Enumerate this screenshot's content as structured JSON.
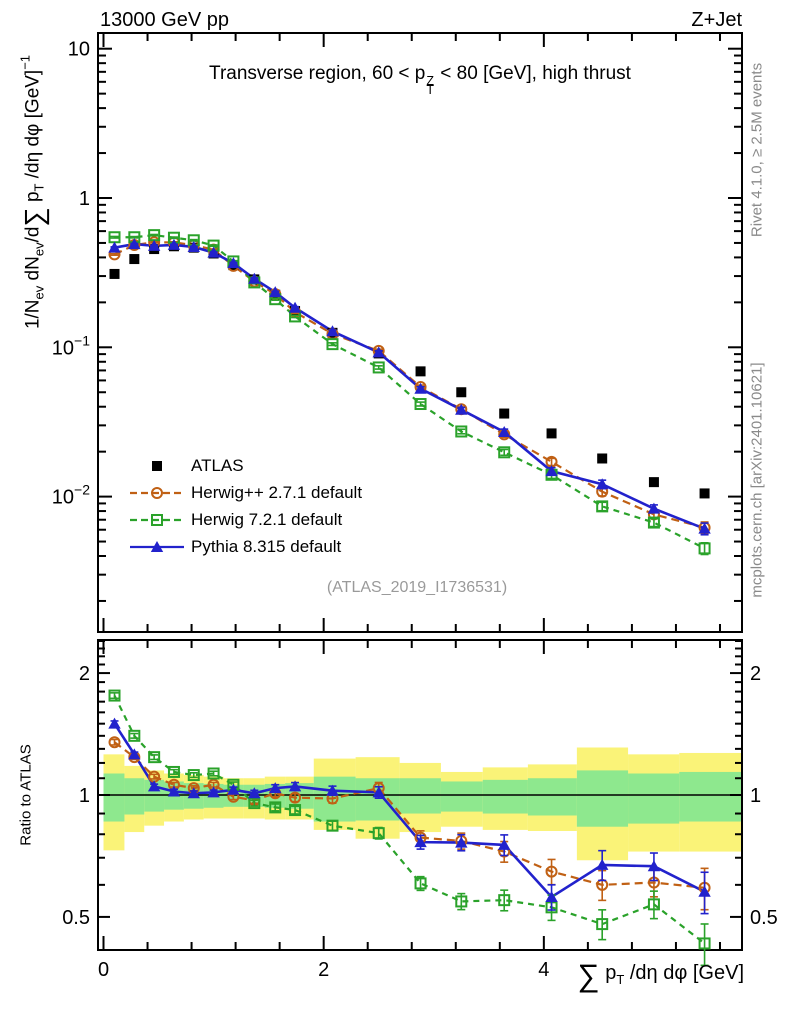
{
  "header": {
    "left": "13000 GeV pp",
    "right": "Z+Jet"
  },
  "panel_title": {
    "prefix": "Transverse region, 60 < p",
    "sup": "Z",
    "sub": "T",
    "suffix": " < 80 [GeV], high thrust"
  },
  "side_notes": {
    "top_right": "Rivet 4.1.0, ≥ 2.5M events",
    "bottom_right": "mcplots.cern.ch [arXiv:2401.10621]"
  },
  "watermark": "(ATLAS_2019_I1736531)",
  "axis_labels": {
    "y_main": {
      "p1": "1/N",
      "s1": "ev",
      "p2": " dN",
      "s2": "ev",
      "p3": "/d",
      "sum": "∑",
      "p4": " p",
      "s3": "T",
      "p5": " /dη dφ  [GeV]",
      "sup": "−1"
    },
    "x": {
      "sum": "∑",
      "p1": " p",
      "s1": "T",
      "p2": " /dη dφ [GeV]"
    },
    "y_ratio": "Ratio to ATLAS"
  },
  "legend": {
    "items": [
      {
        "label": "ATLAS",
        "marker": "filled-square",
        "color": "#000000",
        "line": "none"
      },
      {
        "label": "Herwig++ 2.7.1 default",
        "marker": "open-circle",
        "color": "#c06014",
        "line": "dashed"
      },
      {
        "label": "Herwig 7.2.1 default",
        "marker": "open-square",
        "color": "#2aa22a",
        "line": "dashed"
      },
      {
        "label": "Pythia 8.315 default",
        "marker": "filled-triangle",
        "color": "#2222cc",
        "line": "solid"
      }
    ]
  },
  "chart_data": {
    "type": "line",
    "title": "Transverse region, 60 < pT(Z) < 80 [GeV], high thrust",
    "xlabel": "∑ pT /dη dφ [GeV]",
    "ylabel": "1/Nev dNev/d∑ pT /dη dφ [GeV]^-1",
    "ylabel_ratio": "Ratio to ATLAS",
    "legend_position": "inside-left",
    "xlim": [
      -0.05,
      5.8
    ],
    "ylog": true,
    "ylim_main": [
      0.00124,
      12.7
    ],
    "ylim_ratio": [
      0.414,
      2.41
    ],
    "x": [
      0.1,
      0.28,
      0.46,
      0.64,
      0.82,
      1.0,
      1.18,
      1.37,
      1.56,
      1.74,
      2.08,
      2.5,
      2.88,
      3.25,
      3.64,
      4.07,
      4.53,
      5.0,
      5.46
    ],
    "bin_edges": [
      0.0,
      0.19,
      0.37,
      0.55,
      0.73,
      0.91,
      1.09,
      1.275,
      1.465,
      1.65,
      1.91,
      2.29,
      2.69,
      3.065,
      3.445,
      3.855,
      4.3,
      4.765,
      5.23,
      5.8
    ],
    "series": [
      {
        "name": "ATLAS",
        "role": "data",
        "values": [
          0.31,
          0.39,
          0.455,
          0.475,
          0.465,
          0.425,
          0.355,
          0.285,
          0.225,
          0.175,
          0.125,
          0.091,
          0.069,
          0.05,
          0.036,
          0.0265,
          0.018,
          0.0125,
          0.0105
        ]
      },
      {
        "name": "Herwig++ 2.7.1 default",
        "role": "mc",
        "values": [
          0.419,
          0.484,
          0.505,
          0.504,
          0.484,
          0.451,
          0.351,
          0.276,
          0.227,
          0.172,
          0.123,
          0.0946,
          0.0542,
          0.0385,
          0.0261,
          0.0171,
          0.0108,
          0.0076,
          0.0062
        ],
        "ratio": [
          1.35,
          1.24,
          1.11,
          1.06,
          1.04,
          1.06,
          0.99,
          0.97,
          1.01,
          0.985,
          0.98,
          1.04,
          0.785,
          0.77,
          0.725,
          0.647,
          0.6,
          0.608,
          0.59
        ]
      },
      {
        "name": "Herwig 7.2.1 default",
        "role": "mc",
        "values": [
          0.546,
          0.546,
          0.564,
          0.542,
          0.521,
          0.48,
          0.376,
          0.272,
          0.21,
          0.161,
          0.105,
          0.0733,
          0.0417,
          0.0273,
          0.0198,
          0.014,
          0.0086,
          0.0067,
          0.0045
        ],
        "ratio": [
          1.76,
          1.4,
          1.24,
          1.14,
          1.12,
          1.13,
          1.06,
          0.955,
          0.932,
          0.918,
          0.84,
          0.805,
          0.605,
          0.546,
          0.55,
          0.528,
          0.48,
          0.537,
          0.43
        ]
      },
      {
        "name": "Pythia 8.315 default",
        "role": "mc",
        "values": [
          0.465,
          0.491,
          0.478,
          0.485,
          0.47,
          0.431,
          0.366,
          0.288,
          0.234,
          0.184,
          0.128,
          0.0924,
          0.0528,
          0.0382,
          0.0271,
          0.0148,
          0.0121,
          0.0083,
          0.0061
        ],
        "ratio": [
          1.5,
          1.26,
          1.05,
          1.02,
          1.01,
          1.015,
          1.03,
          1.01,
          1.04,
          1.05,
          1.025,
          1.015,
          0.765,
          0.763,
          0.753,
          0.56,
          0.672,
          0.667,
          0.577
        ]
      }
    ],
    "rel_err": [
      0.012,
      0.01,
      0.01,
      0.01,
      0.01,
      0.01,
      0.012,
      0.013,
      0.015,
      0.017,
      0.02,
      0.025,
      0.03,
      0.035,
      0.045,
      0.055,
      0.065,
      0.06,
      0.09
    ],
    "bands": {
      "yellow_hi": [
        1.26,
        1.18,
        1.15,
        1.13,
        1.12,
        1.11,
        1.1,
        1.1,
        1.11,
        1.11,
        1.23,
        1.24,
        1.2,
        1.14,
        1.17,
        1.19,
        1.31,
        1.26,
        1.27
      ],
      "yellow_lo": [
        0.73,
        0.81,
        0.84,
        0.86,
        0.87,
        0.875,
        0.875,
        0.875,
        0.87,
        0.87,
        0.82,
        0.78,
        0.81,
        0.835,
        0.82,
        0.815,
        0.69,
        0.725,
        0.725
      ],
      "green_hi": [
        1.13,
        1.1,
        1.09,
        1.08,
        1.07,
        1.065,
        1.06,
        1.06,
        1.065,
        1.07,
        1.11,
        1.1,
        1.1,
        1.08,
        1.09,
        1.1,
        1.15,
        1.13,
        1.14
      ],
      "green_lo": [
        0.86,
        0.895,
        0.91,
        0.92,
        0.925,
        0.93,
        0.935,
        0.935,
        0.93,
        0.925,
        0.86,
        0.865,
        0.9,
        0.91,
        0.9,
        0.89,
        0.835,
        0.85,
        0.86
      ]
    },
    "band_colors": {
      "outer": "#faf378",
      "inner": "#8ee88e"
    },
    "main_y_ticks": [
      {
        "v": 10,
        "t": "10"
      },
      {
        "v": 1,
        "t": "1"
      },
      {
        "v": 0.1,
        "t": "10",
        "e": "−1"
      },
      {
        "v": 0.01,
        "t": "10",
        "e": "−2"
      }
    ],
    "x_ticks": [
      {
        "v": 0,
        "t": "0"
      },
      {
        "v": 2,
        "t": "2"
      },
      {
        "v": 4,
        "t": "4"
      }
    ],
    "ratio_y_ticks": [
      {
        "v": 2,
        "t": "2"
      },
      {
        "v": 1,
        "t": "1"
      },
      {
        "v": 0.5,
        "t": "0.5"
      }
    ]
  }
}
